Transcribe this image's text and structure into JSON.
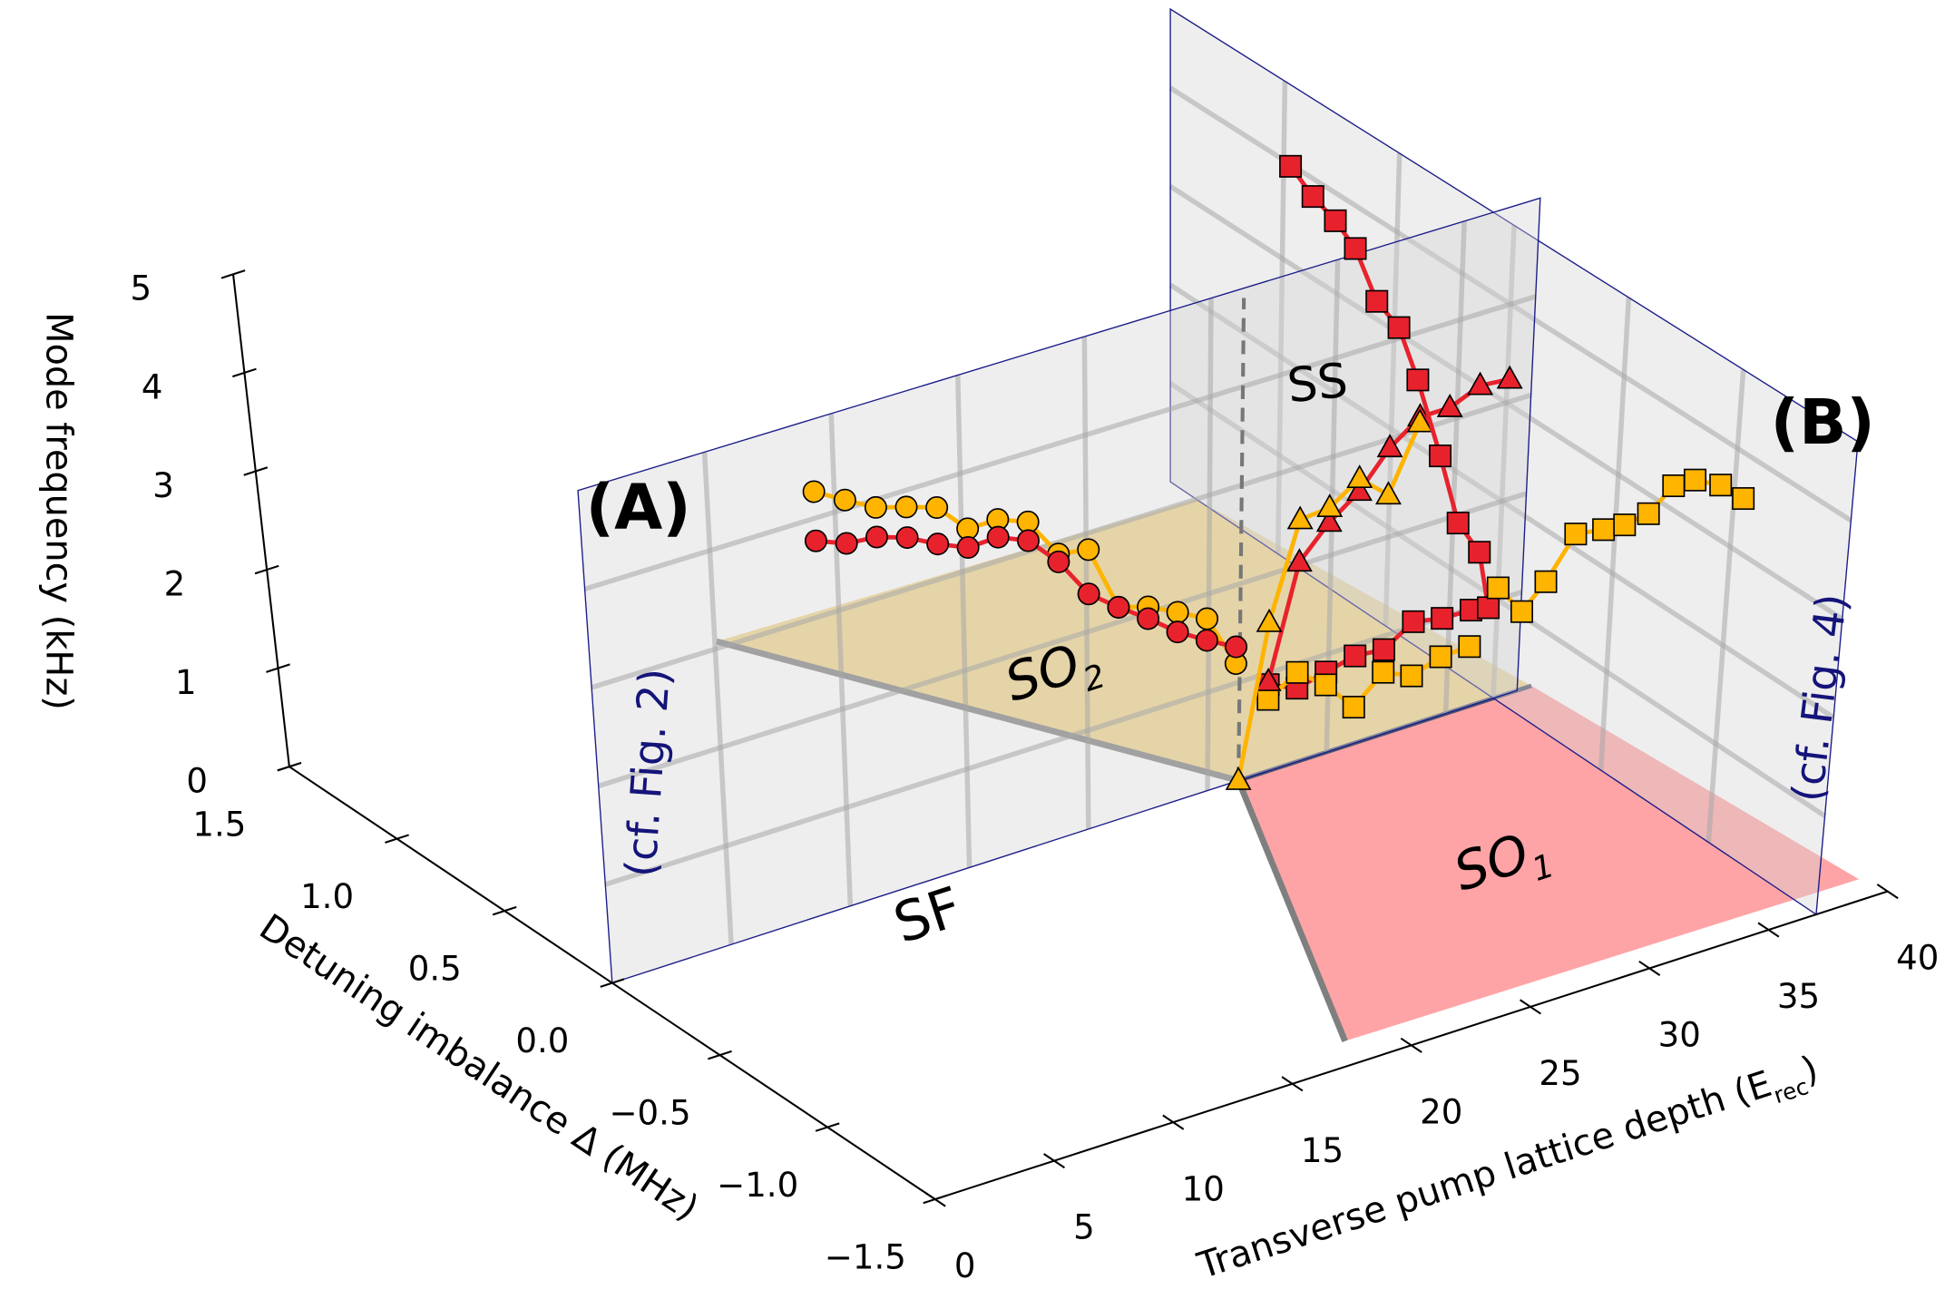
{
  "chart_data": {
    "type": "scatter3d",
    "xlabel": {
      "text": "Transverse pump lattice depth (E",
      "sub": "rec",
      "end": ")"
    },
    "ylabel": "Detuning imbalance Δ (MHz)",
    "zlabel": "Mode frequency (kHz)",
    "xlim": [
      0,
      40
    ],
    "ylim": [
      -1.5,
      1.5
    ],
    "zlim": [
      0,
      5
    ],
    "xticks": [
      0,
      5,
      10,
      15,
      20,
      25,
      30,
      35,
      40
    ],
    "yticks": [
      1.5,
      {
        "value": 1,
        "label": "1.0"
      },
      0.5,
      {
        "value": 0,
        "label": "0.0"
      },
      {
        "value": -0.5,
        "label": "−0.5"
      },
      {
        "value": -1,
        "label": "−1.0"
      },
      {
        "value": -1.5,
        "label": "−1.5"
      }
    ],
    "zticks": [
      0,
      1,
      2,
      3,
      4,
      5
    ],
    "regions": [
      {
        "label": {
          "text": "SO",
          "sub": "2"
        },
        "color": "#efcf7e",
        "points": [
          [
            17.4,
            1.44
          ],
          [
            26.3,
            0
          ],
          [
            38.6,
            0
          ],
          [
            37,
            1.38
          ]
        ]
      },
      {
        "label": {
          "text": "SO",
          "sub": "1"
        },
        "color": "#ff9a9c",
        "points": [
          [
            26.3,
            0
          ],
          [
            38.6,
            0
          ],
          [
            39.7,
            -1.4
          ],
          [
            18.3,
            -1.38
          ]
        ]
      }
    ],
    "boundaries": [
      {
        "color": "#7f7f7f",
        "points": [
          [
            17.4,
            1.44
          ],
          [
            26.3,
            0
          ],
          [
            18.3,
            -1.38
          ]
        ]
      },
      {
        "color": "#4b5470",
        "points": [
          [
            26.3,
            0
          ],
          [
            38.6,
            0
          ]
        ]
      }
    ],
    "triple_point": {
      "x": 26.3,
      "y": 0,
      "z_top": 4.9
    },
    "phase_labels": [
      "SF",
      "SS"
    ],
    "panels": [
      {
        "label": "(A)",
        "note": "(cf. Fig. 2)",
        "y": 0,
        "xlim": [
          0,
          38
        ],
        "zlim": [
          0,
          5
        ]
      },
      {
        "label": "(B)",
        "note": "(cf. Fig. 4)",
        "x": 37,
        "ylim": [
          1.5,
          -1.5
        ],
        "zlim": [
          0,
          4.8
        ]
      }
    ],
    "series": [
      {
        "panel": 0,
        "marker": "circle",
        "color": "#ffb400",
        "x": [
          9.2,
          10.41,
          11.62,
          12.83,
          14.04,
          15.25,
          16.46,
          17.67,
          18.88,
          20.09,
          21.3,
          22.51,
          23.72,
          24.93,
          26.14
        ],
        "values": [
          4.27,
          4.09,
          3.92,
          3.83,
          3.73,
          3.42,
          3.42,
          3.3,
          2.88,
          2.83,
          2.15,
          2.06,
          1.91,
          1.75,
          1.2
        ]
      },
      {
        "panel": 0,
        "marker": "circle",
        "color": "#e8222c",
        "x": [
          9.2,
          10.41,
          11.62,
          12.83,
          14.04,
          15.25,
          16.46,
          17.67,
          18.88,
          20.09,
          21.3,
          22.51,
          23.72,
          24.93,
          26.14
        ],
        "values": [
          3.77,
          3.65,
          3.62,
          3.52,
          3.36,
          3.23,
          3.24,
          3.11,
          2.8,
          2.38,
          2.15,
          1.94,
          1.71,
          1.53,
          1.37
        ]
      },
      {
        "panel": 0,
        "marker": "square",
        "color": "#e8222c",
        "x": [
          27.5,
          28.7,
          29.9,
          31.1,
          32.3,
          33.5,
          34.7,
          35.9
        ],
        "values": [
          0.88,
          0.75,
          0.82,
          0.89,
          0.86,
          1.05,
          0.99,
          0.98
        ]
      },
      {
        "panel": 0,
        "marker": "square",
        "color": "#ffb400",
        "x": [
          27.5,
          28.7,
          29.9,
          31.1,
          32.3,
          33.5,
          34.7,
          35.9
        ],
        "values": [
          0.73,
          0.91,
          0.69,
          0.37,
          0.63,
          0.5,
          0.6,
          0.61
        ]
      },
      {
        "panel": 0,
        "marker": "triangle",
        "color": "#e8222c",
        "x": [
          27.5,
          28.7,
          29.9,
          31.1,
          32.3,
          33.5,
          34.7,
          35.9,
          37.1
        ],
        "values": [
          0.91,
          2.03,
          2.34,
          2.56,
          2.91,
          3.13,
          3.13,
          3.26,
          3.23
        ]
      },
      {
        "panel": 0,
        "marker": "triangle",
        "color": "#ffb400",
        "x": [
          26.3,
          27.5,
          28.7,
          29.9,
          31.1,
          32.3,
          33.5
        ],
        "values": [
          0,
          1.51,
          2.46,
          2.49,
          2.69,
          2.43,
          3.07
        ]
      },
      {
        "panel": 1,
        "marker": "square",
        "color": "#e8222c",
        "y": [
          0.97,
          0.87,
          0.77,
          0.68,
          0.58,
          0.48,
          0.39,
          0.28,
          0.19,
          0.09,
          0.04
        ],
        "values": [
          3.98,
          3.82,
          3.72,
          3.57,
          3.18,
          3.06,
          2.66,
          2.05,
          1.5,
          1.35,
          0.86
        ]
      },
      {
        "panel": 1,
        "marker": "square",
        "color": "#ffb400",
        "y": [
          0,
          -0.11,
          -0.21,
          -0.33,
          -0.45,
          -0.54,
          -0.64,
          -0.74,
          -0.83,
          -0.94,
          -1.04
        ],
        "values": [
          1.12,
          1.04,
          1.49,
          2.15,
          2.37,
          2.55,
          2.81,
          3.24,
          3.43,
          3.54,
          3.55
        ]
      }
    ]
  }
}
